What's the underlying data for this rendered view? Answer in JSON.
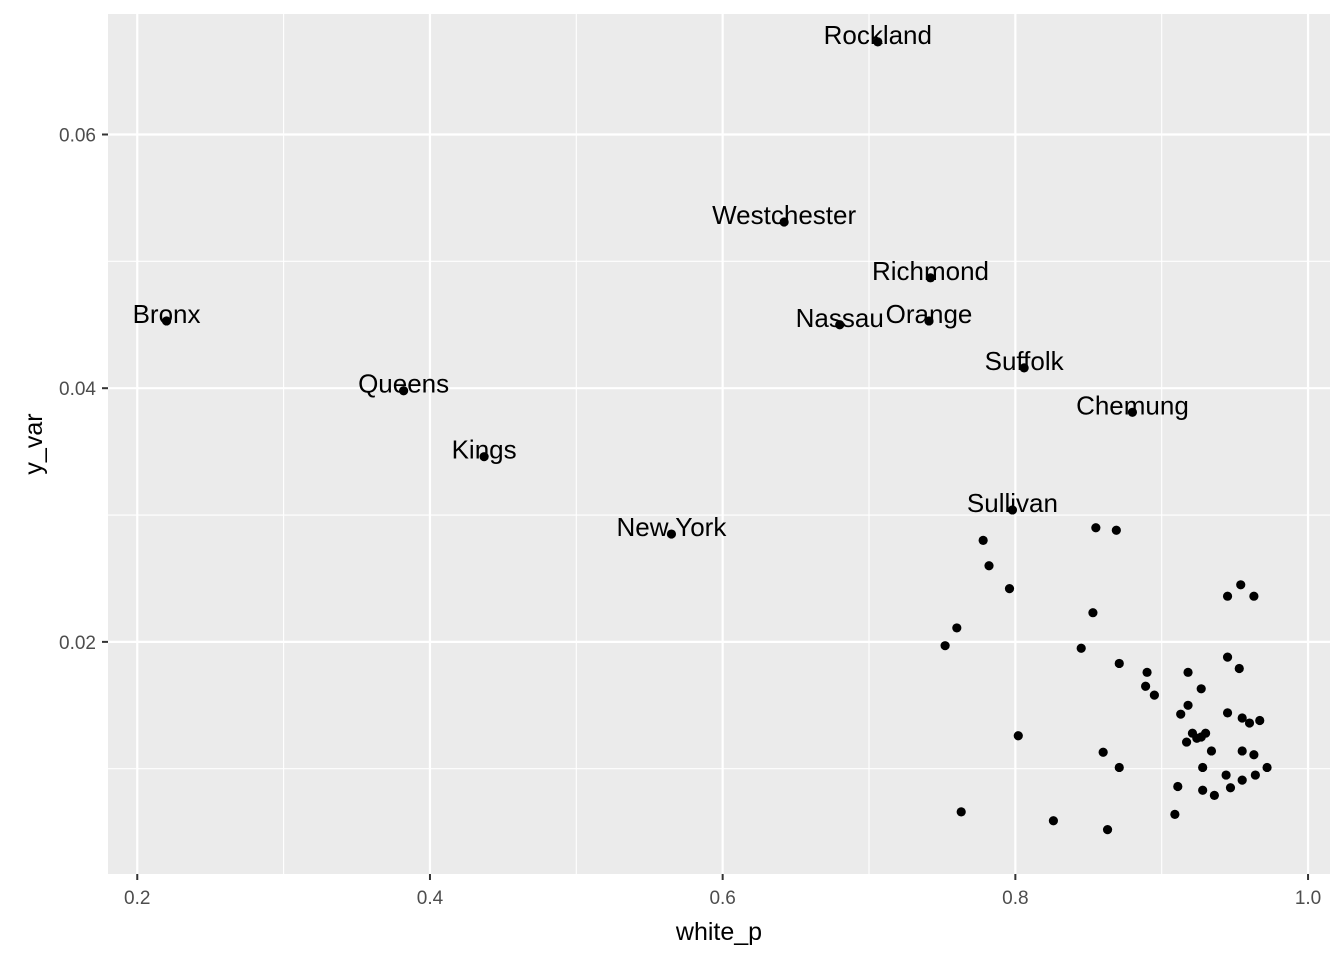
{
  "chart_data": {
    "type": "scatter",
    "xlabel": "white_p",
    "ylabel": "y_var",
    "xlim": [
      0.18,
      1.015
    ],
    "ylim": [
      0.0017,
      0.0695
    ],
    "x_ticks": [
      0.2,
      0.4,
      0.6,
      0.8,
      1.0
    ],
    "x_tick_labels": [
      "0.2",
      "0.4",
      "0.6",
      "0.8",
      "1.0"
    ],
    "y_ticks": [
      0.02,
      0.04,
      0.06
    ],
    "y_tick_labels": [
      "0.02",
      "0.04",
      "0.06"
    ],
    "grid": true,
    "panel_background": "#ebebeb",
    "point_color": "#000000",
    "labeled_points": [
      {
        "label": "Rockland",
        "x": 0.706,
        "y": 0.0673
      },
      {
        "label": "Westchester",
        "x": 0.642,
        "y": 0.0531
      },
      {
        "label": "Richmond",
        "x": 0.742,
        "y": 0.0487
      },
      {
        "label": "Bronx",
        "x": 0.22,
        "y": 0.0453
      },
      {
        "label": "Nassau",
        "x": 0.68,
        "y": 0.045
      },
      {
        "label": "Orange",
        "x": 0.741,
        "y": 0.0453
      },
      {
        "label": "Suffolk",
        "x": 0.806,
        "y": 0.0416
      },
      {
        "label": "Queens",
        "x": 0.382,
        "y": 0.0398
      },
      {
        "label": "Chemung",
        "x": 0.88,
        "y": 0.0381
      },
      {
        "label": "Kings",
        "x": 0.437,
        "y": 0.0346
      },
      {
        "label": "Sullivan",
        "x": 0.798,
        "y": 0.0304
      },
      {
        "label": "New York",
        "x": 0.565,
        "y": 0.0285
      }
    ],
    "points": [
      {
        "x": 0.855,
        "y": 0.029
      },
      {
        "x": 0.869,
        "y": 0.0288
      },
      {
        "x": 0.778,
        "y": 0.028
      },
      {
        "x": 0.782,
        "y": 0.026
      },
      {
        "x": 0.796,
        "y": 0.0242
      },
      {
        "x": 0.954,
        "y": 0.0245
      },
      {
        "x": 0.945,
        "y": 0.0236
      },
      {
        "x": 0.963,
        "y": 0.0236
      },
      {
        "x": 0.853,
        "y": 0.0223
      },
      {
        "x": 0.76,
        "y": 0.0211
      },
      {
        "x": 0.752,
        "y": 0.0197
      },
      {
        "x": 0.845,
        "y": 0.0195
      },
      {
        "x": 0.945,
        "y": 0.0188
      },
      {
        "x": 0.871,
        "y": 0.0183
      },
      {
        "x": 0.953,
        "y": 0.0179
      },
      {
        "x": 0.89,
        "y": 0.0176
      },
      {
        "x": 0.918,
        "y": 0.0176
      },
      {
        "x": 0.889,
        "y": 0.0165
      },
      {
        "x": 0.927,
        "y": 0.0163
      },
      {
        "x": 0.895,
        "y": 0.0158
      },
      {
        "x": 0.918,
        "y": 0.015
      },
      {
        "x": 0.913,
        "y": 0.0143
      },
      {
        "x": 0.945,
        "y": 0.0144
      },
      {
        "x": 0.955,
        "y": 0.014
      },
      {
        "x": 0.967,
        "y": 0.0138
      },
      {
        "x": 0.96,
        "y": 0.0136
      },
      {
        "x": 0.921,
        "y": 0.0128
      },
      {
        "x": 0.924,
        "y": 0.0124
      },
      {
        "x": 0.927,
        "y": 0.0125
      },
      {
        "x": 0.93,
        "y": 0.0128
      },
      {
        "x": 0.917,
        "y": 0.0121
      },
      {
        "x": 0.802,
        "y": 0.0126
      },
      {
        "x": 0.934,
        "y": 0.0114
      },
      {
        "x": 0.955,
        "y": 0.0114
      },
      {
        "x": 0.963,
        "y": 0.0111
      },
      {
        "x": 0.86,
        "y": 0.0113
      },
      {
        "x": 0.871,
        "y": 0.0101
      },
      {
        "x": 0.928,
        "y": 0.0101
      },
      {
        "x": 0.972,
        "y": 0.0101
      },
      {
        "x": 0.944,
        "y": 0.0095
      },
      {
        "x": 0.964,
        "y": 0.0095
      },
      {
        "x": 0.955,
        "y": 0.0091
      },
      {
        "x": 0.911,
        "y": 0.0086
      },
      {
        "x": 0.947,
        "y": 0.0085
      },
      {
        "x": 0.928,
        "y": 0.0083
      },
      {
        "x": 0.936,
        "y": 0.0079
      },
      {
        "x": 0.763,
        "y": 0.0066
      },
      {
        "x": 0.909,
        "y": 0.0064
      },
      {
        "x": 0.826,
        "y": 0.0059
      },
      {
        "x": 0.863,
        "y": 0.0052
      }
    ]
  }
}
